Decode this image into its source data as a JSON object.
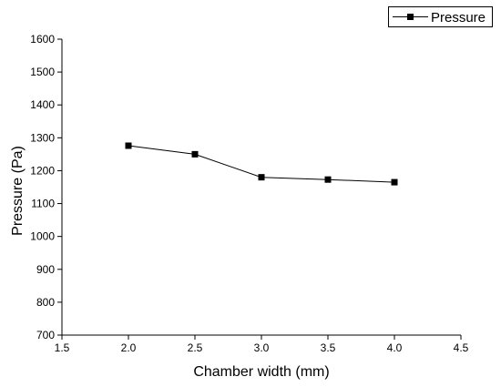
{
  "chart_data": {
    "type": "line",
    "xlabel": "Chamber width (mm)",
    "ylabel": "Pressure (Pa)",
    "xlim": [
      1.5,
      4.5
    ],
    "ylim": [
      700,
      1600
    ],
    "x_ticks": [
      "1.5",
      "2.0",
      "2.5",
      "3.0",
      "3.5",
      "4.0",
      "4.5"
    ],
    "y_ticks": [
      "700",
      "800",
      "900",
      "1000",
      "1100",
      "1200",
      "1300",
      "1400",
      "1500",
      "1600"
    ],
    "grid": false,
    "legend_position": "top-right",
    "series": [
      {
        "name": "Pressure",
        "marker": "square",
        "color": "#000000",
        "x": [
          2.0,
          2.5,
          3.0,
          3.5,
          4.0
        ],
        "y": [
          1276,
          1250,
          1180,
          1173,
          1165
        ]
      }
    ]
  }
}
